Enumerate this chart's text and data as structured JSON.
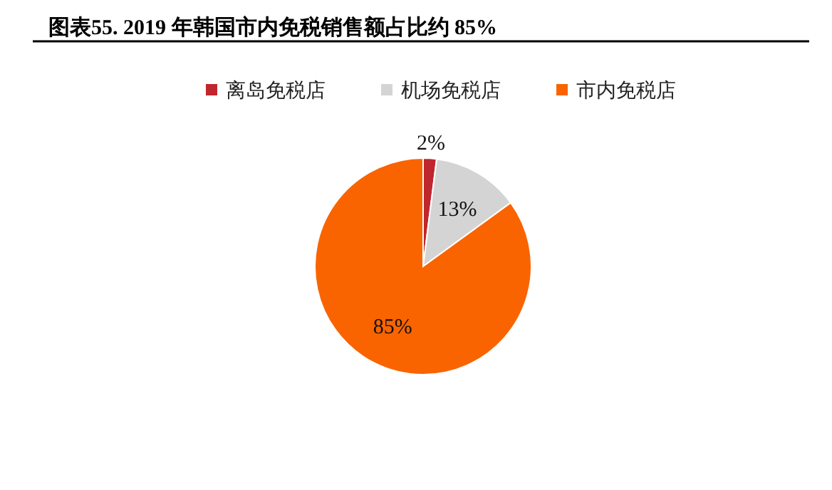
{
  "chart_data": {
    "type": "pie",
    "title": "图表55. 2019 年韩国市内免税销售额占比约 85%",
    "categories": [
      "离岛免税店",
      "机场免税店",
      "市内免税店"
    ],
    "values": [
      2,
      13,
      85
    ],
    "colors": [
      "#c0262d",
      "#d4d4d4",
      "#f96400"
    ],
    "value_labels": [
      "2%",
      "13%",
      "85%"
    ],
    "legend": "top"
  }
}
